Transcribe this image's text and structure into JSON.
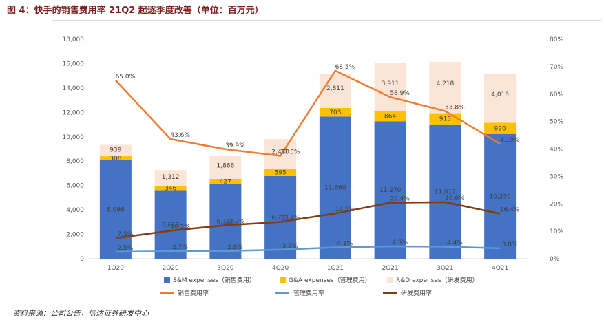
{
  "caption": "图 4：快手的销售费用率 21Q2 起逐季度改善（单位：百万元）",
  "source": "资料来源：公司公告，信达证券研发中心",
  "chart_data": {
    "type": "bar",
    "stacked": true,
    "categories": [
      "1Q20",
      "2Q20",
      "3Q20",
      "4Q20",
      "1Q21",
      "2Q21",
      "3Q21",
      "4Q21"
    ],
    "y_left": {
      "min": 0,
      "max": 18000,
      "step": 2000,
      "ticks": [
        "0",
        "2,000",
        "4,000",
        "6,000",
        "8,000",
        "10,000",
        "12,000",
        "14,000",
        "16,000",
        "18,000"
      ]
    },
    "y_right": {
      "min": 0,
      "max": 80,
      "step": 10,
      "ticks": [
        "0%",
        "10%",
        "20%",
        "30%",
        "40%",
        "50%",
        "60%",
        "70%",
        "80%"
      ]
    },
    "bar_series": [
      {
        "name": "S&M expenses（销售费用）",
        "color": "#4472c4",
        "values": [
          8096,
          5613,
          6124,
          6781,
          11660,
          11270,
          11017,
          10230
        ],
        "labels": [
          "8,096",
          "5,613",
          "6,124",
          "6,781",
          "11,660",
          "11,270",
          "11,017",
          "10,230"
        ]
      },
      {
        "name": "G&A expenses（管理费用）",
        "color": "#ffc000",
        "values": [
          308,
          346,
          427,
          595,
          703,
          864,
          913,
          920
        ],
        "labels": [
          "308",
          "346",
          "427",
          "595",
          "703",
          "864",
          "913",
          "920"
        ]
      },
      {
        "name": "R&D expenses（研发费用）",
        "color": "#fbe5d6",
        "values": [
          939,
          1312,
          1866,
          2430,
          2811,
          3911,
          4218,
          4016
        ],
        "labels": [
          "939",
          "1,312",
          "1,866",
          "2,430",
          "2,811",
          "3,911",
          "4,218",
          "4,016"
        ]
      }
    ],
    "line_series": [
      {
        "name": "销售费用率",
        "color": "#ed7d31",
        "values": [
          65.0,
          43.6,
          39.9,
          37.5,
          68.5,
          58.9,
          53.8,
          41.9
        ],
        "labels": [
          "65.0%",
          "43.6%",
          "39.9%",
          "37.5%",
          "68.5%",
          "58.9%",
          "53.8%",
          "41.9%"
        ]
      },
      {
        "name": "管理费用率",
        "color": "#5b9bd5",
        "values": [
          2.5,
          2.7,
          2.8,
          3.3,
          4.1,
          4.5,
          4.4,
          3.8
        ],
        "labels": [
          "2.5%",
          "2.7%",
          "2.8%",
          "3.3%",
          "4.1%",
          "4.5%",
          "4.4%",
          "3.8%"
        ]
      },
      {
        "name": "研发费用率",
        "color": "#843c0c",
        "values": [
          7.5,
          10.2,
          12.2,
          13.4,
          16.5,
          20.4,
          20.6,
          16.4
        ],
        "labels": [
          "7.5%",
          "10.2%",
          "12.2%",
          "13.4%",
          "16.5%",
          "20.4%",
          "20.6%",
          "16.4%"
        ]
      }
    ]
  }
}
